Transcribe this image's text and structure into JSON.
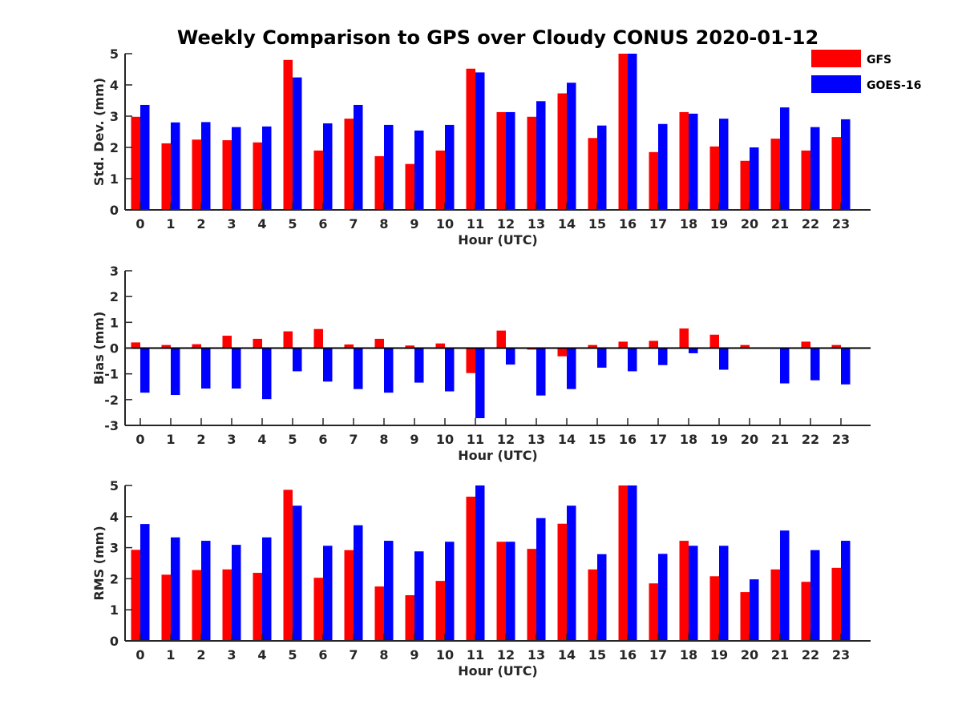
{
  "title": "Weekly Comparison to GPS over Cloudy CONUS 2020-01-12",
  "legend": {
    "placement": "top-right",
    "entries": [
      {
        "label": "GFS",
        "color": "#ff0000"
      },
      {
        "label": "GOES-16",
        "color": "#0000ff"
      }
    ]
  },
  "chart_data": [
    {
      "type": "bar",
      "xlabel": "Hour (UTC)",
      "ylabel": "Std. Dev. (mm)",
      "ylim": [
        0,
        5
      ],
      "yticks": [
        0,
        1,
        2,
        3,
        4,
        5
      ],
      "categories": [
        "0",
        "1",
        "2",
        "3",
        "4",
        "5",
        "6",
        "7",
        "8",
        "9",
        "10",
        "11",
        "12",
        "13",
        "14",
        "15",
        "16",
        "17",
        "18",
        "19",
        "20",
        "21",
        "22",
        "23"
      ],
      "series": [
        {
          "name": "GFS",
          "color": "#ff0000",
          "values": [
            2.98,
            2.13,
            2.25,
            2.23,
            2.16,
            4.8,
            1.9,
            2.92,
            1.72,
            1.47,
            1.9,
            4.52,
            3.13,
            2.98,
            3.73,
            2.3,
            5.0,
            1.85,
            3.13,
            2.03,
            1.57,
            2.28,
            1.9,
            2.33
          ]
        },
        {
          "name": "GOES-16",
          "color": "#0000ff",
          "values": [
            3.36,
            2.8,
            2.81,
            2.65,
            2.67,
            4.24,
            2.77,
            3.36,
            2.72,
            2.54,
            2.72,
            4.4,
            3.13,
            3.48,
            4.07,
            2.7,
            5.0,
            2.75,
            3.08,
            2.92,
            2.0,
            3.28,
            2.65,
            2.9
          ]
        }
      ]
    },
    {
      "type": "bar",
      "xlabel": "Hour (UTC)",
      "ylabel": "Bias (mm)",
      "ylim": [
        -3,
        3
      ],
      "yticks": [
        -3,
        -2,
        -1,
        0,
        1,
        2,
        3
      ],
      "baseline": 0,
      "categories": [
        "0",
        "1",
        "2",
        "3",
        "4",
        "5",
        "6",
        "7",
        "8",
        "9",
        "10",
        "11",
        "12",
        "13",
        "14",
        "15",
        "16",
        "17",
        "18",
        "19",
        "20",
        "21",
        "22",
        "23"
      ],
      "series": [
        {
          "name": "GFS",
          "color": "#ff0000",
          "values": [
            0.22,
            0.12,
            0.15,
            0.48,
            0.36,
            0.65,
            0.74,
            0.14,
            0.36,
            0.1,
            0.18,
            -0.97,
            0.68,
            -0.06,
            -0.32,
            0.12,
            0.25,
            0.28,
            0.76,
            0.52,
            0.12,
            -0.03,
            0.25,
            0.12
          ]
        },
        {
          "name": "GOES-16",
          "color": "#0000ff",
          "values": [
            -1.73,
            -1.82,
            -1.57,
            -1.57,
            -1.98,
            -0.9,
            -1.3,
            -1.59,
            -1.73,
            -1.34,
            -1.68,
            -2.72,
            -0.64,
            -1.84,
            -1.59,
            -0.76,
            -0.9,
            -0.66,
            -0.2,
            -0.84,
            0.0,
            -1.37,
            -1.25,
            -1.41
          ]
        }
      ]
    },
    {
      "type": "bar",
      "xlabel": "Hour (UTC)",
      "ylabel": "RMS (mm)",
      "ylim": [
        0,
        5
      ],
      "yticks": [
        0,
        1,
        2,
        3,
        4,
        5
      ],
      "categories": [
        "0",
        "1",
        "2",
        "3",
        "4",
        "5",
        "6",
        "7",
        "8",
        "9",
        "10",
        "11",
        "12",
        "13",
        "14",
        "15",
        "16",
        "17",
        "18",
        "19",
        "20",
        "21",
        "22",
        "23"
      ],
      "series": [
        {
          "name": "GFS",
          "color": "#ff0000",
          "values": [
            2.93,
            2.13,
            2.28,
            2.3,
            2.19,
            4.86,
            2.03,
            2.92,
            1.75,
            1.47,
            1.93,
            4.64,
            3.19,
            2.96,
            3.77,
            2.3,
            5.0,
            1.85,
            3.22,
            2.08,
            1.57,
            2.3,
            1.9,
            2.35
          ]
        },
        {
          "name": "GOES-16",
          "color": "#0000ff",
          "values": [
            3.76,
            3.33,
            3.22,
            3.09,
            3.33,
            4.35,
            3.06,
            3.72,
            3.22,
            2.88,
            3.19,
            5.0,
            3.19,
            3.95,
            4.35,
            2.79,
            5.0,
            2.8,
            3.06,
            3.06,
            1.98,
            3.55,
            2.92,
            3.22
          ]
        }
      ]
    }
  ]
}
